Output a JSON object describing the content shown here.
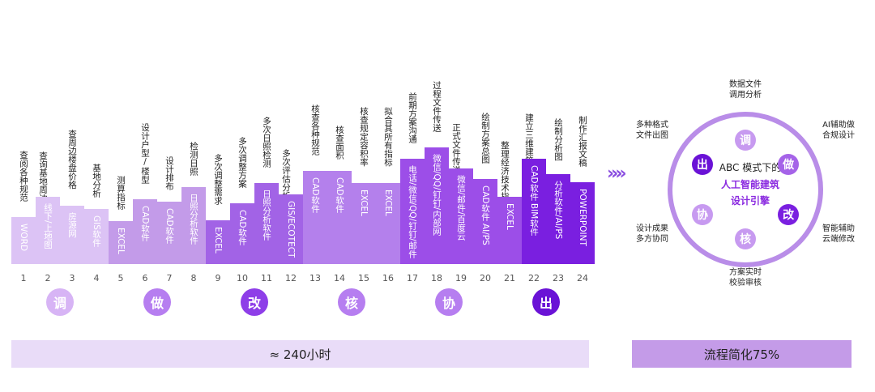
{
  "steps": [
    {
      "num": "1",
      "task": "查阅各种规范",
      "tool": "WORD",
      "level": 1
    },
    {
      "num": "2",
      "task": "查询基地周边信息",
      "tool": "线下/上地图",
      "level": 1
    },
    {
      "num": "3",
      "task": "查周边楼盘价格",
      "tool": "房源网",
      "level": 1
    },
    {
      "num": "4",
      "task": "基地分析",
      "tool": "GIS软件",
      "level": 1
    },
    {
      "num": "5",
      "task": "测算指标",
      "tool": "EXCEL",
      "level": 2
    },
    {
      "num": "6",
      "task": "设计户型/楼型",
      "tool": "CAD软件",
      "level": 2
    },
    {
      "num": "7",
      "task": "设计排布",
      "tool": "CAD软件",
      "level": 2
    },
    {
      "num": "8",
      "task": "检测日照",
      "tool": "日照分析软件",
      "level": 2
    },
    {
      "num": "9",
      "task": "多次调整需求",
      "tool": "EXCEL",
      "level": 3
    },
    {
      "num": "10",
      "task": "多次调整方案",
      "tool": "CAD软件",
      "level": 3
    },
    {
      "num": "11",
      "task": "多次日照检测",
      "tool": "日照分析软件",
      "level": 3
    },
    {
      "num": "12",
      "task": "多次评估分析方案",
      "tool": "GIS/ECOTECT",
      "level": 3
    },
    {
      "num": "13",
      "task": "核查各种规范",
      "tool": "CAD软件",
      "level": 4
    },
    {
      "num": "14",
      "task": "核查面积",
      "tool": "CAD软件",
      "level": 4
    },
    {
      "num": "15",
      "task": "核查规定容积率",
      "tool": "EXCEL",
      "level": 4
    },
    {
      "num": "16",
      "task": "拟合其所有指标",
      "tool": "EXCEL",
      "level": 4
    },
    {
      "num": "17",
      "task": "前期方案沟通",
      "tool": "电话/微信/QQ/钉钉/邮件",
      "level": 5
    },
    {
      "num": "18",
      "task": "过程文件传送",
      "tool": "微信/QQ/钉钉/内部网",
      "level": 5
    },
    {
      "num": "19",
      "task": "正式文件传送对接",
      "tool": "微信/邮件/百度云",
      "level": 5
    },
    {
      "num": "20",
      "task": "绘制方案总图",
      "tool": "CAD软件  AI/PS",
      "level": 5
    },
    {
      "num": "21",
      "task": "整理经济技术指标表",
      "tool": "EXCEL",
      "level": 5
    },
    {
      "num": "22",
      "task": "建立三维建筑模型",
      "tool": "CAD软件  BIM软件",
      "level": 6
    },
    {
      "num": "23",
      "task": "绘制分析图",
      "tool": "分析软件/AI/PS",
      "level": 6
    },
    {
      "num": "24",
      "task": "制作汇报文稿",
      "tool": "POWERPOINT",
      "level": 6
    }
  ],
  "stages": [
    {
      "label": "调",
      "color": "#d7b4f5"
    },
    {
      "label": "做",
      "color": "#b67ef0"
    },
    {
      "label": "改",
      "color": "#8e3ee8"
    },
    {
      "label": "核",
      "color": "#b67ef0"
    },
    {
      "label": "协",
      "color": "#b67ef0"
    },
    {
      "label": "出",
      "color": "#6a12d6"
    }
  ],
  "level_colors": {
    "1": "#dcc3f5",
    "2": "#c39be9",
    "3": "#a263e6",
    "4": "#b480ec",
    "5": "#9c4ee8",
    "6": "#7a1fe0"
  },
  "total_label": "≈ 240小时",
  "result_label": "流程简化75%",
  "arrows": "»»»",
  "mode": {
    "title": "ABC 模式下的",
    "subtitle1": "人工智能建筑",
    "subtitle2": "设计引擎",
    "nodes": [
      {
        "label": "调",
        "desc1": "数据文件",
        "desc2": "调用分析",
        "color": "#c79af0"
      },
      {
        "label": "做",
        "desc1": "AI辅助做",
        "desc2": "合规设计",
        "color": "#a563e8"
      },
      {
        "label": "改",
        "desc1": "智能辅助",
        "desc2": "云端修改",
        "color": "#7a1fe0"
      },
      {
        "label": "核",
        "desc1": "方案实时",
        "desc2": "校验审核",
        "color": "#c79af0"
      },
      {
        "label": "协",
        "desc1": "设计成果",
        "desc2": "多方协同",
        "color": "#c79af0"
      },
      {
        "label": "出",
        "desc1": "多种格式",
        "desc2": "文件出图",
        "color": "#6a12d6"
      }
    ]
  }
}
